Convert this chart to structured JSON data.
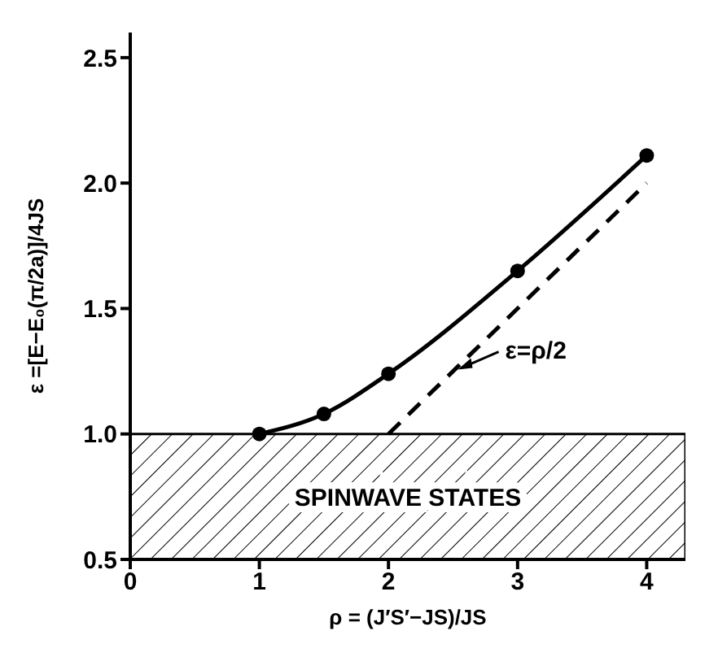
{
  "chart_data": {
    "type": "line",
    "xlabel": "ρ = (J′S′−JS)/JS",
    "ylabel": "ε =[E−E₀(π/2a)]/4JS",
    "xlim": [
      0,
      4.3
    ],
    "xticks": [
      0,
      1,
      2,
      3,
      4
    ],
    "ylim": [
      0.5,
      2.6
    ],
    "yticks": [
      0.5,
      {
        "value": 1,
        "label": "1.0"
      },
      1.5,
      {
        "value": 2,
        "label": "2.0"
      },
      2.5
    ],
    "series": [
      {
        "color": "#000000",
        "x": [
          1,
          1.5,
          2,
          3,
          4
        ],
        "values": [
          1.0,
          1.08,
          1.24,
          1.65,
          2.11
        ],
        "marker": "circle",
        "line_style": "solid"
      },
      {
        "color": "#000000",
        "x": [
          2,
          4
        ],
        "values": [
          1.0,
          2.0
        ],
        "marker": "none",
        "line_style": "dashed"
      }
    ],
    "bands": [
      {
        "axis": "y",
        "from": 0.5,
        "to": 1.0,
        "label": "SPINWAVE STATES"
      }
    ],
    "annotations": [
      {
        "text": "ε=ρ/2",
        "x": 2.5,
        "y": 1.25
      }
    ]
  }
}
